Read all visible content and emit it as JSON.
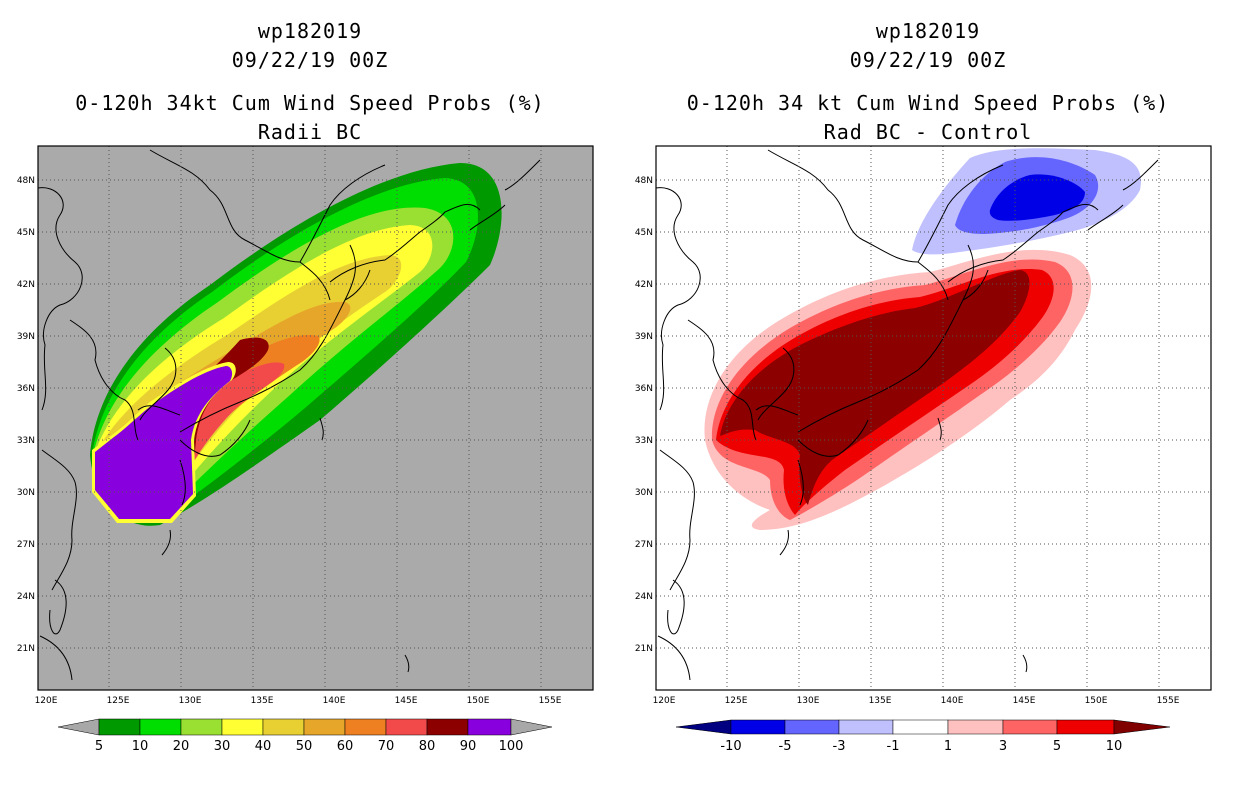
{
  "left_panel": {
    "storm_id": "wp182019",
    "datetime": "09/22/19 00Z",
    "title": "0-120h 34kt Cum Wind Speed Probs (%)",
    "subtitle": "Radii BC",
    "lat_labels": [
      "48N",
      "45N",
      "42N",
      "39N",
      "36N",
      "33N",
      "30N",
      "27N",
      "24N",
      "21N"
    ],
    "lon_labels": [
      "120E",
      "125E",
      "130E",
      "135E",
      "140E",
      "145E",
      "150E",
      "155E"
    ],
    "colorbar": {
      "labels": [
        "5",
        "10",
        "20",
        "30",
        "40",
        "50",
        "60",
        "70",
        "80",
        "90",
        "100"
      ],
      "colors": [
        "#009900",
        "#00dd00",
        "#99e033",
        "#ffff33",
        "#e8d033",
        "#e6a62a",
        "#ee8022",
        "#f24a4a",
        "#8c0000",
        "#8800dd"
      ],
      "arrow_color": "#a8a8a8"
    },
    "background": "#aaaaaa"
  },
  "right_panel": {
    "storm_id": "wp182019",
    "datetime": "09/22/19 00Z",
    "title": "0-120h 34 kt Cum Wind Speed Probs (%)",
    "subtitle": "Rad BC - Control",
    "lat_labels": [
      "48N",
      "45N",
      "42N",
      "39N",
      "36N",
      "33N",
      "30N",
      "27N",
      "24N",
      "21N"
    ],
    "lon_labels": [
      "120E",
      "125E",
      "130E",
      "135E",
      "140E",
      "145E",
      "150E",
      "155E"
    ],
    "colorbar": {
      "labels": [
        "-10",
        "-5",
        "-3",
        "-1",
        "1",
        "3",
        "5",
        "10"
      ],
      "colors": [
        "#0000e6",
        "#6464ff",
        "#c0c0ff",
        "#ffffff",
        "#ffc0c0",
        "#ff6464",
        "#ee0000"
      ],
      "low_arrow_color": "#000080",
      "high_arrow_color": "#800000"
    },
    "background": "#ffffff"
  }
}
